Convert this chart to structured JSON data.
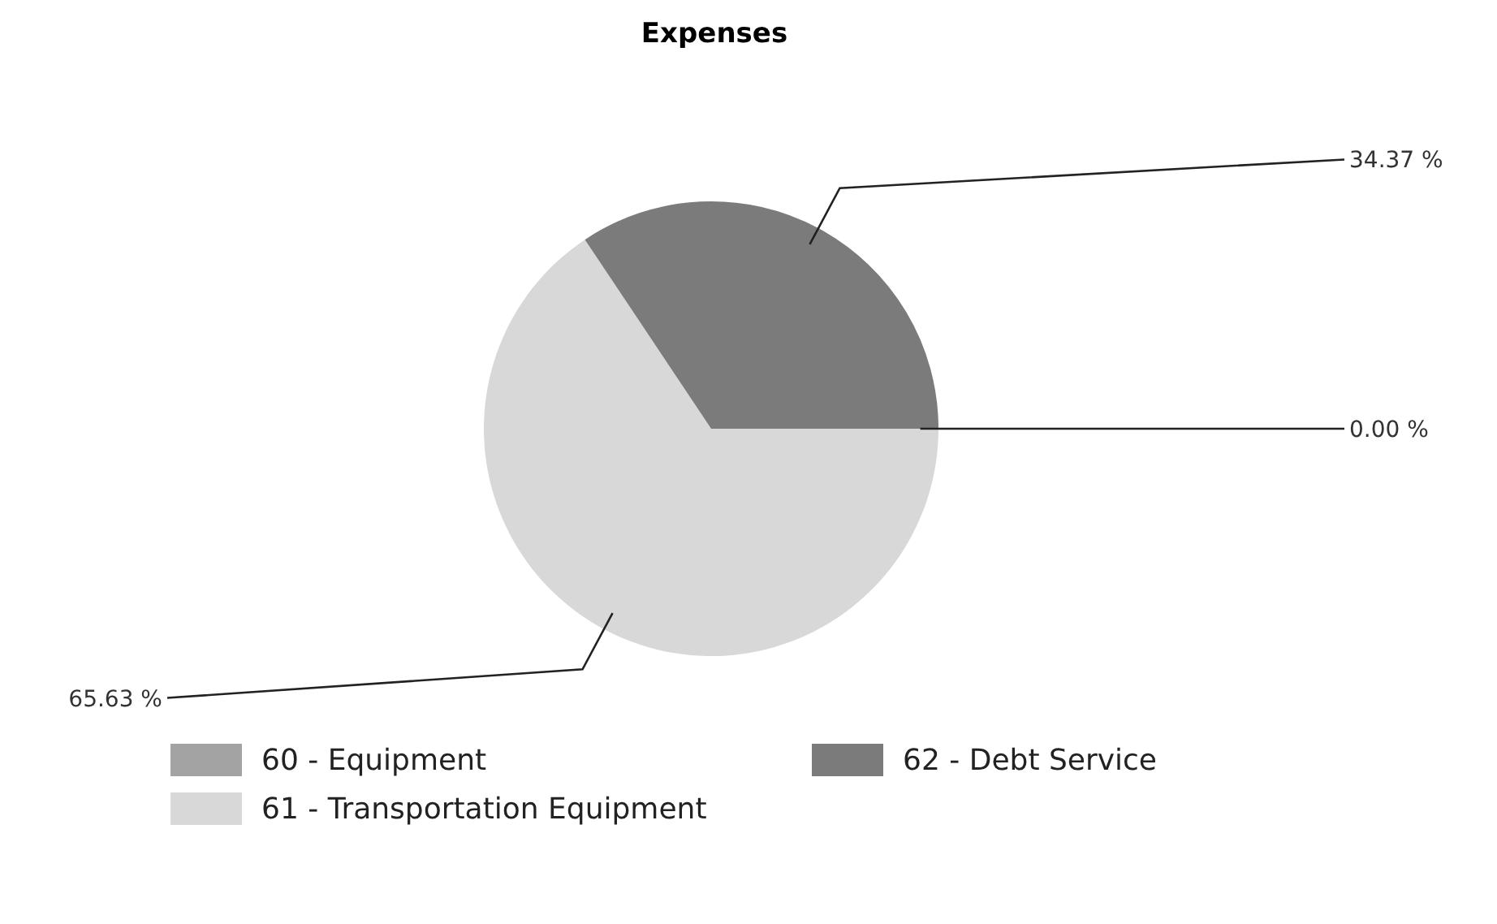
{
  "chart_data": {
    "type": "pie",
    "title": "Expenses",
    "categories": [
      "60 - Equipment",
      "61 - Transportation Equipment",
      "62 - Debt Service"
    ],
    "values": [
      0.0,
      65.63,
      34.37
    ],
    "colors": [
      "#a3a3a3",
      "#d8d8d8",
      "#7b7b7b"
    ],
    "value_labels": [
      "0.00 %",
      "65.63 %",
      "34.37 %"
    ],
    "legend": "bottom"
  }
}
